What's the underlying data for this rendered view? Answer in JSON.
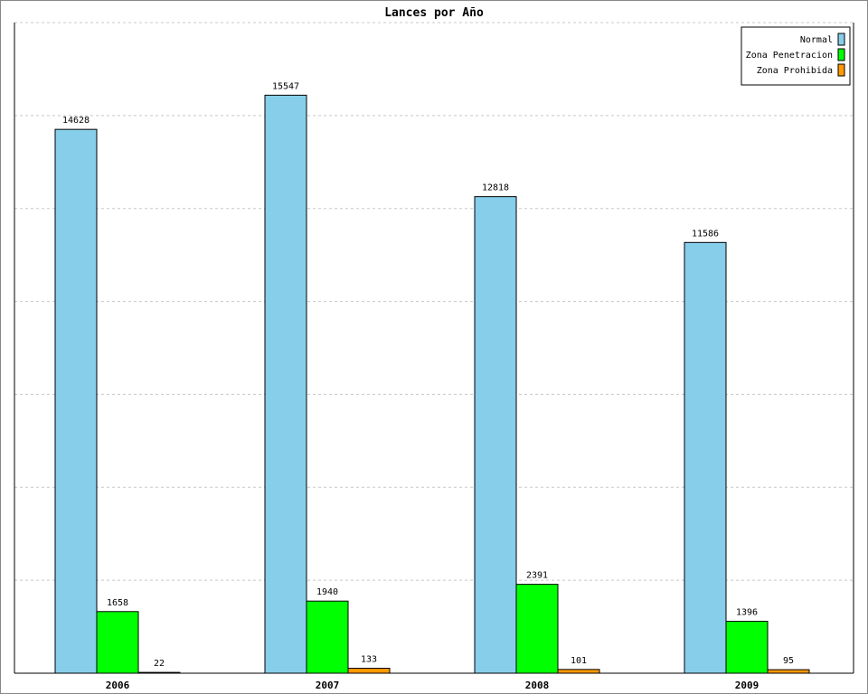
{
  "chart_data": {
    "type": "bar",
    "title": "Lances por Año",
    "xlabel": "",
    "ylabel": "",
    "categories": [
      "2006",
      "2007",
      "2008",
      "2009"
    ],
    "series": [
      {
        "name": "Normal",
        "values": [
          14628,
          15547,
          12818,
          11586
        ],
        "color": "#87ceeb"
      },
      {
        "name": "Zona Penetracion",
        "values": [
          1658,
          1940,
          2391,
          1396
        ],
        "color": "#00ff00"
      },
      {
        "name": "Zona Prohibida",
        "values": [
          22,
          133,
          101,
          95
        ],
        "color": "#ff9900"
      }
    ],
    "ylim": [
      0,
      17500
    ],
    "grid": true,
    "legend_position": "top-right"
  }
}
